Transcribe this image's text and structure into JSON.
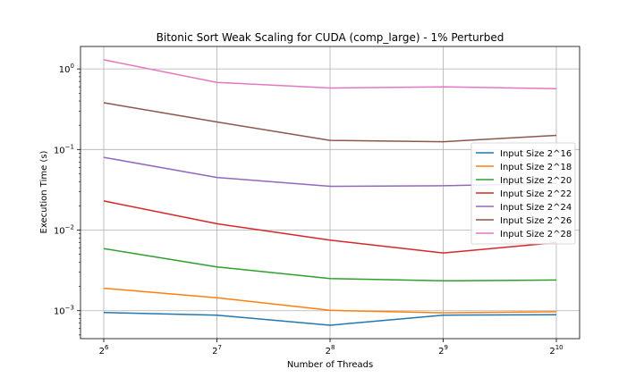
{
  "chart_data": {
    "type": "line",
    "title": "Bitonic Sort Weak Scaling for CUDA (comp_large) - 1% Perturbed",
    "xlabel": "Number of Threads",
    "ylabel": "Execution Time (s)",
    "xscale": "log2",
    "yscale": "log10",
    "x": [
      64,
      128,
      256,
      512,
      1024
    ],
    "x_tick_labels": [
      {
        "base": "2",
        "exp": "6"
      },
      {
        "base": "2",
        "exp": "7"
      },
      {
        "base": "2",
        "exp": "8"
      },
      {
        "base": "2",
        "exp": "9"
      },
      {
        "base": "2",
        "exp": "10"
      }
    ],
    "y_ticks": [
      {
        "value": 0.001,
        "base": "10",
        "exp": "−3"
      },
      {
        "value": 0.01,
        "base": "10",
        "exp": "−2"
      },
      {
        "value": 0.1,
        "base": "10",
        "exp": "−1"
      },
      {
        "value": 1,
        "base": "10",
        "exp": "0"
      }
    ],
    "ylim": [
      0.00045,
      1.9
    ],
    "grid": true,
    "legend_position": "right",
    "series": [
      {
        "name": "Input Size 2^16",
        "color": "#1f77b4",
        "values": [
          0.00095,
          0.00088,
          0.00066,
          0.00088,
          0.00089
        ]
      },
      {
        "name": "Input Size 2^18",
        "color": "#ff7f0e",
        "values": [
          0.0019,
          0.00145,
          0.00101,
          0.00094,
          0.00097
        ]
      },
      {
        "name": "Input Size 2^20",
        "color": "#2ca02c",
        "values": [
          0.0059,
          0.0035,
          0.0025,
          0.00235,
          0.0024
        ]
      },
      {
        "name": "Input Size 2^22",
        "color": "#d62728",
        "values": [
          0.023,
          0.012,
          0.0075,
          0.0052,
          0.007
        ]
      },
      {
        "name": "Input Size 2^24",
        "color": "#9467bd",
        "values": [
          0.08,
          0.045,
          0.035,
          0.0355,
          0.038
        ]
      },
      {
        "name": "Input Size 2^26",
        "color": "#8c564b",
        "values": [
          0.38,
          0.22,
          0.13,
          0.125,
          0.15
        ]
      },
      {
        "name": "Input Size 2^28",
        "color": "#e377c2",
        "values": [
          1.3,
          0.68,
          0.58,
          0.6,
          0.57
        ]
      }
    ]
  }
}
